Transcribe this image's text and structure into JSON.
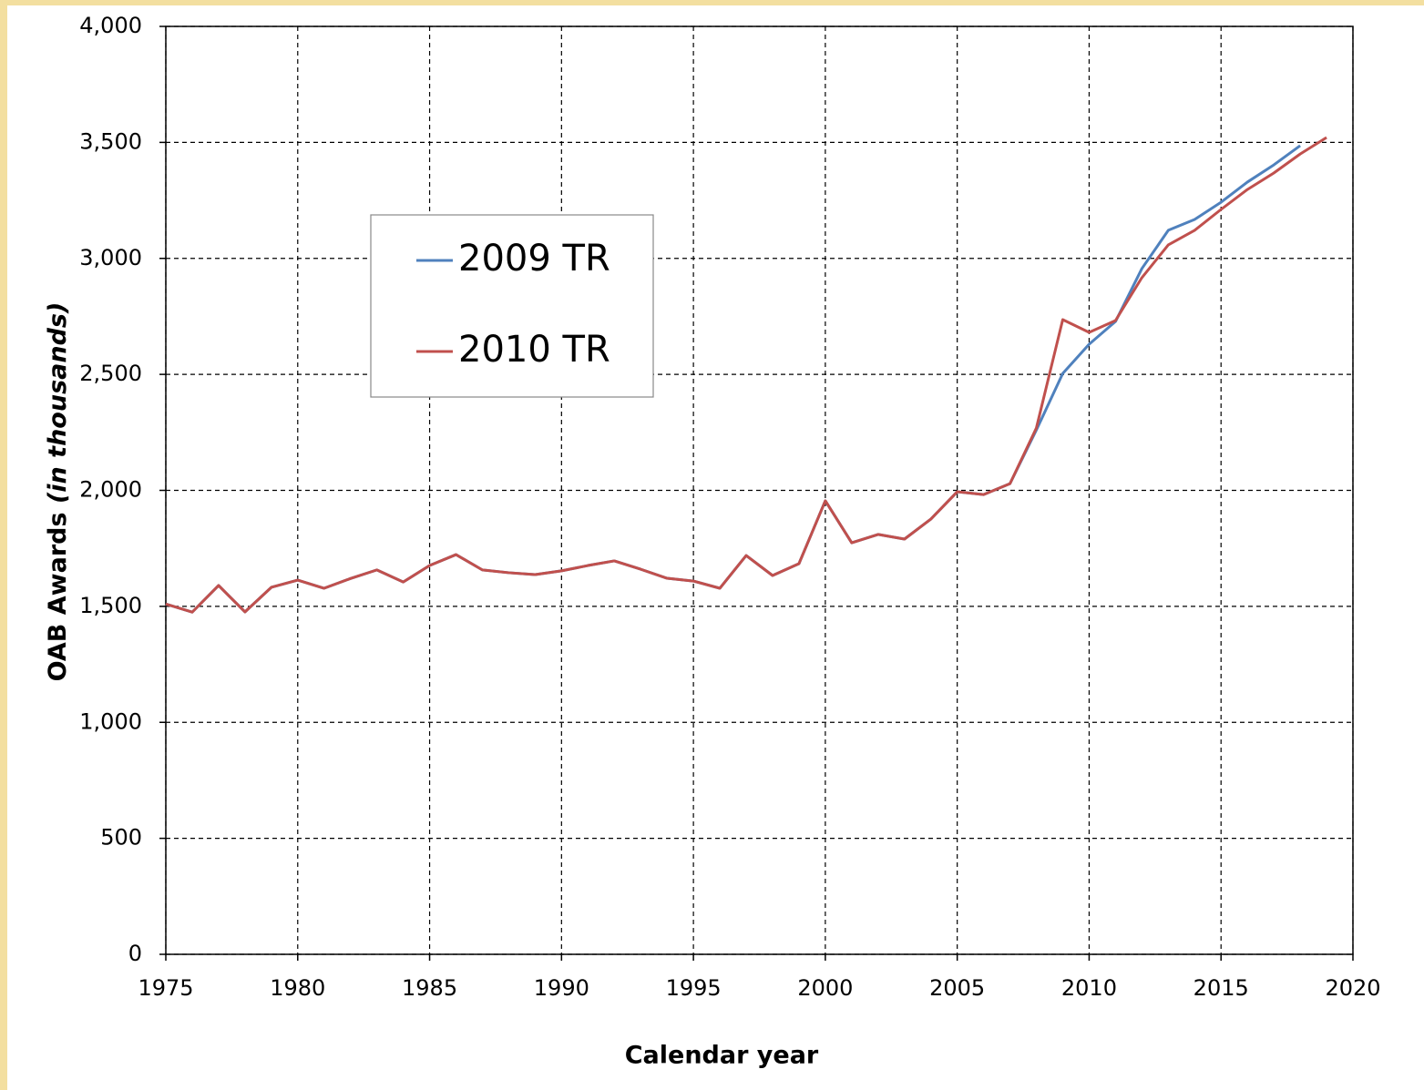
{
  "chart_data": {
    "type": "line",
    "xlabel": "Calendar year",
    "ylabel": [
      "OAB Awards ",
      "(in thousands)"
    ],
    "x": [
      1975,
      1976,
      1977,
      1978,
      1979,
      1980,
      1981,
      1982,
      1983,
      1984,
      1985,
      1986,
      1987,
      1988,
      1989,
      1990,
      1991,
      1992,
      1993,
      1994,
      1995,
      1996,
      1997,
      1998,
      1999,
      2000,
      2001,
      2002,
      2003,
      2004,
      2005,
      2006,
      2007,
      2008,
      2009,
      2010,
      2011,
      2012,
      2013,
      2014,
      2015,
      2016,
      2017,
      2018,
      2019
    ],
    "series": [
      {
        "name": "2009 TR",
        "color": "#4f81bd",
        "values": [
          1510,
          1475,
          1590,
          1476,
          1582,
          1613,
          1578,
          1620,
          1657,
          1605,
          1676,
          1723,
          1657,
          1645,
          1637,
          1653,
          1676,
          1696,
          1660,
          1621,
          1609,
          1578,
          1719,
          1633,
          1684,
          1955,
          1774,
          1810,
          1790,
          1876,
          1994,
          1982,
          2029,
          2260,
          2504,
          2630,
          2728,
          2956,
          3121,
          3168,
          3242,
          3329,
          3403,
          3486,
          null
        ]
      },
      {
        "name": "2010 TR",
        "color": "#c0504d",
        "values": [
          1510,
          1475,
          1590,
          1476,
          1582,
          1613,
          1578,
          1620,
          1657,
          1605,
          1676,
          1723,
          1657,
          1645,
          1637,
          1653,
          1676,
          1696,
          1660,
          1621,
          1609,
          1578,
          1719,
          1633,
          1684,
          1955,
          1774,
          1810,
          1790,
          1876,
          1994,
          1982,
          2029,
          2269,
          2736,
          2681,
          2732,
          2917,
          3058,
          3121,
          3211,
          3297,
          3368,
          3450,
          3521
        ]
      }
    ],
    "xlim": [
      1975,
      2020
    ],
    "xticks": [
      1975,
      1980,
      1985,
      1990,
      1995,
      2000,
      2005,
      2010,
      2015,
      2020
    ],
    "ylim": [
      0,
      4000
    ],
    "yticks": [
      0,
      {
        "value": 500,
        "label": "500"
      },
      {
        "value": 1000,
        "label": "1,000"
      },
      {
        "value": 1500,
        "label": "1,500"
      },
      {
        "value": 2000,
        "label": "2,000"
      },
      {
        "value": 2500,
        "label": "2,500"
      },
      {
        "value": 3000,
        "label": "3,000"
      },
      {
        "value": 3500,
        "label": "3,500"
      },
      {
        "value": 4000,
        "label": "4,000"
      }
    ],
    "grid": true,
    "legend": "upper left"
  }
}
